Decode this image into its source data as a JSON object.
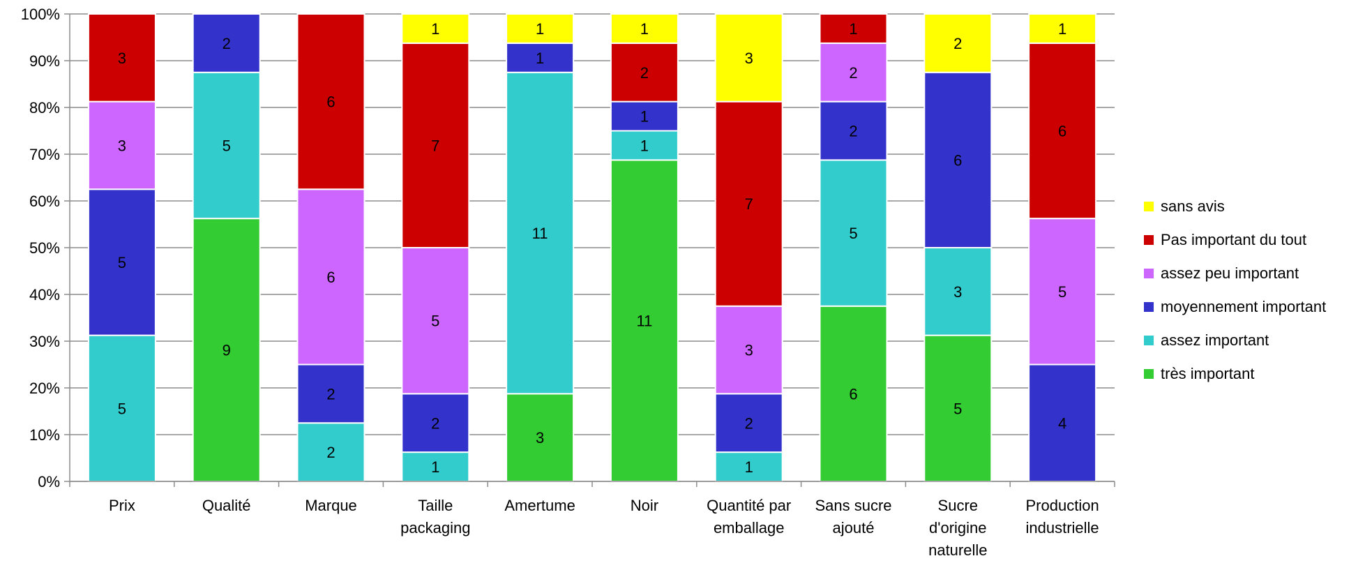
{
  "chart_data": {
    "type": "bar",
    "stacked": "percent",
    "categories": [
      [
        "Prix"
      ],
      [
        "Qualité"
      ],
      [
        "Marque"
      ],
      [
        "Taille",
        "packaging"
      ],
      [
        "Amertume"
      ],
      [
        "Noir"
      ],
      [
        "Quantité par",
        "emballage"
      ],
      [
        "Sans sucre",
        "ajouté"
      ],
      [
        "Sucre",
        "d'origine",
        "naturelle"
      ],
      [
        "Production",
        "industrielle"
      ]
    ],
    "series": [
      {
        "name": "très important",
        "color": "#33cc33",
        "values": [
          0,
          9,
          0,
          0,
          3,
          11,
          0,
          6,
          5,
          0
        ]
      },
      {
        "name": "assez important",
        "color": "#33cccc",
        "values": [
          5,
          5,
          2,
          1,
          11,
          1,
          1,
          5,
          3,
          0
        ]
      },
      {
        "name": "moyennement important",
        "color": "#3333cc",
        "values": [
          5,
          2,
          2,
          2,
          1,
          1,
          2,
          2,
          6,
          4
        ]
      },
      {
        "name": "assez peu important",
        "color": "#cc66ff",
        "values": [
          3,
          0,
          6,
          5,
          0,
          0,
          3,
          2,
          0,
          5
        ]
      },
      {
        "name": "Pas important du tout",
        "color": "#cc0000",
        "values": [
          3,
          0,
          6,
          7,
          0,
          2,
          7,
          1,
          0,
          6
        ]
      },
      {
        "name": "sans avis",
        "color": "#ffff00",
        "values": [
          0,
          0,
          0,
          1,
          1,
          1,
          3,
          0,
          2,
          1
        ]
      }
    ],
    "ylim": [
      0,
      100
    ],
    "yticks": [
      "0%",
      "10%",
      "20%",
      "30%",
      "40%",
      "50%",
      "60%",
      "70%",
      "80%",
      "90%",
      "100%"
    ],
    "grid": true,
    "legend_position": "right"
  }
}
